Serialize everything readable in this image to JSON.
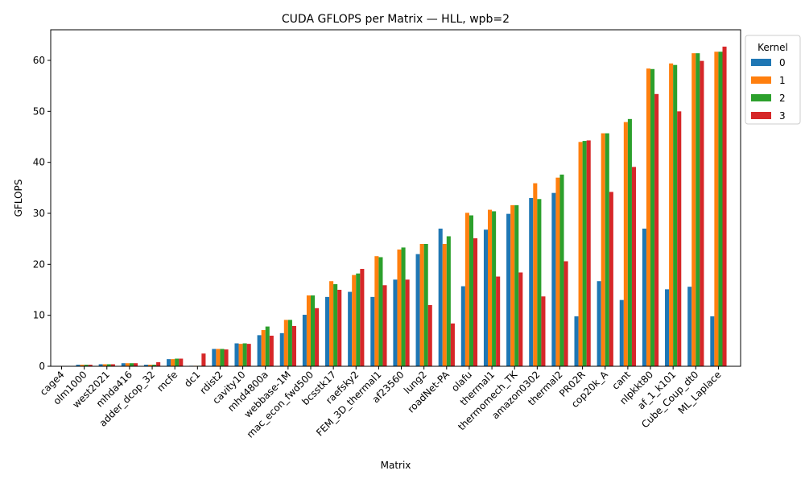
{
  "chart_data": {
    "type": "bar",
    "title": "CUDA GFLOPS per Matrix — HLL, wpb=2",
    "xlabel": "Matrix",
    "ylabel": "GFLOPS",
    "ylim": [
      0,
      66
    ],
    "yticks": [
      0,
      10,
      20,
      30,
      40,
      50,
      60
    ],
    "legend": {
      "title": "Kernel",
      "position": "outside-top-right"
    },
    "grid": false,
    "categories": [
      "cage4",
      "olm1000",
      "west2021",
      "mhda416",
      "adder_dcop_32",
      "mcfe",
      "dc1",
      "rdist2",
      "cavity10",
      "mhd4800a",
      "webbase-1M",
      "mac_econ_fwd500",
      "bcsstk17",
      "raefsky2",
      "FEM_3D_thermal1",
      "af23560",
      "lung2",
      "roadNet-PA",
      "olafu",
      "thermal1",
      "thermomech_TK",
      "amazon0302",
      "thermal2",
      "PR02R",
      "cop20k_A",
      "cant",
      "nlpkkt80",
      "af_1_k101",
      "Cube_Coup_dt0",
      "ML_Laplace"
    ],
    "series": [
      {
        "name": "0",
        "color": "#1f77b4",
        "values": [
          0.05,
          0.3,
          0.4,
          0.6,
          0.3,
          1.4,
          0.1,
          3.4,
          4.5,
          6.1,
          6.5,
          10.1,
          13.6,
          14.6,
          13.6,
          17.0,
          22.0,
          27.0,
          15.7,
          26.8,
          29.9,
          33.0,
          34.0,
          9.8,
          16.7,
          13.0,
          27.0,
          15.1,
          15.6,
          9.8
        ]
      },
      {
        "name": "1",
        "color": "#ff7f0e",
        "values": [
          0.05,
          0.3,
          0.4,
          0.6,
          0.3,
          1.4,
          0.1,
          3.4,
          4.4,
          7.1,
          9.1,
          13.9,
          16.7,
          17.9,
          21.6,
          22.9,
          24.0,
          24.0,
          30.1,
          30.7,
          31.6,
          35.9,
          37.0,
          44.0,
          45.7,
          47.9,
          58.4,
          59.4,
          61.4,
          61.7
        ]
      },
      {
        "name": "2",
        "color": "#2ca02c",
        "values": [
          0.05,
          0.3,
          0.4,
          0.6,
          0.3,
          1.5,
          0.1,
          3.4,
          4.5,
          7.8,
          9.1,
          13.9,
          16.1,
          18.2,
          21.4,
          23.3,
          24.0,
          25.5,
          29.6,
          30.4,
          31.6,
          32.8,
          37.6,
          44.2,
          45.7,
          48.5,
          58.3,
          59.1,
          61.4,
          61.7
        ]
      },
      {
        "name": "3",
        "color": "#d62728",
        "values": [
          0.05,
          0.3,
          0.4,
          0.6,
          0.8,
          1.5,
          2.5,
          3.3,
          4.4,
          6.0,
          7.9,
          11.4,
          15.0,
          19.1,
          15.9,
          17.0,
          12.0,
          8.4,
          25.1,
          17.6,
          18.4,
          13.7,
          20.6,
          44.3,
          34.2,
          39.1,
          53.4,
          50.0,
          59.9,
          62.7
        ]
      }
    ]
  }
}
